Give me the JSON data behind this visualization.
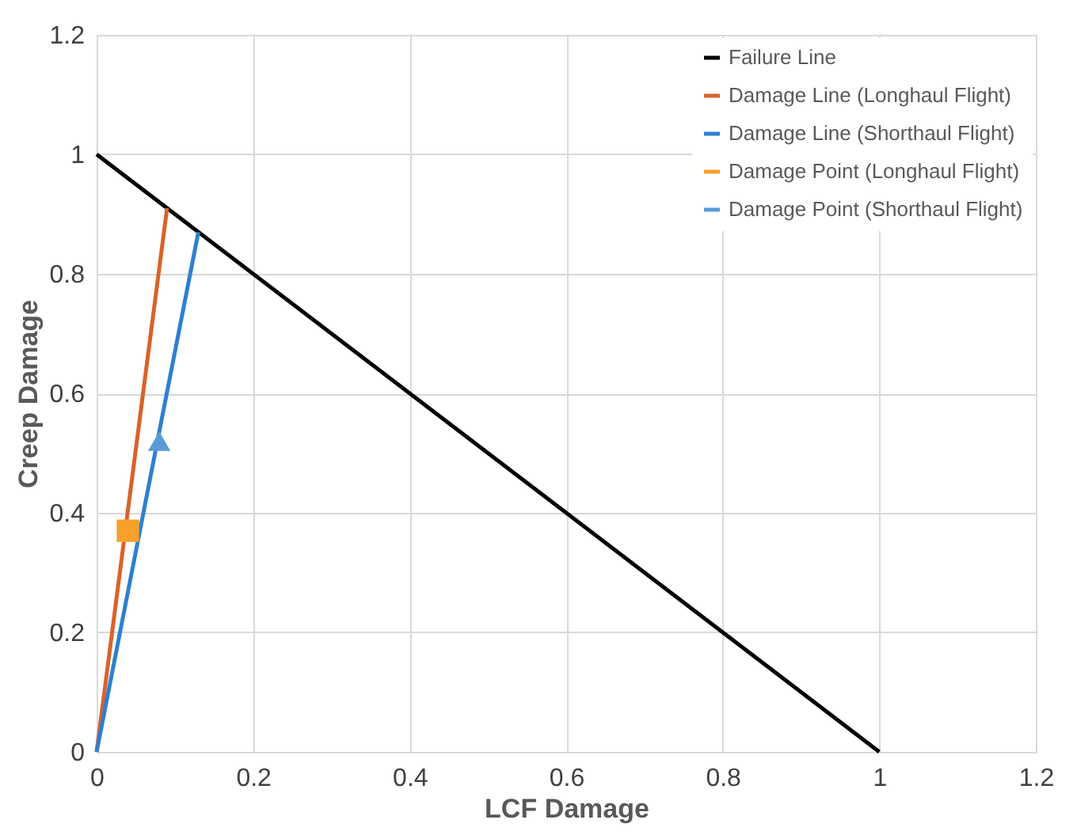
{
  "chart_data": {
    "type": "line",
    "xlabel": "LCF Damage",
    "ylabel": "Creep Damage",
    "xlim": [
      0,
      1.2
    ],
    "xticks": [
      0,
      0.2,
      0.4,
      0.6,
      0.8,
      1,
      1.2
    ],
    "ylim": [
      0,
      1.2
    ],
    "yticks": [
      0,
      0.2,
      0.4,
      0.6,
      0.8,
      1,
      1.2
    ],
    "grid": true,
    "legend": "top right",
    "series": [
      {
        "name": "Failure Line",
        "color": "#000000",
        "x": [
          0,
          1
        ],
        "values": [
          1,
          0
        ]
      },
      {
        "name": "Damage Line (Longhaul Flight)",
        "color": "#d9622b",
        "x": [
          0,
          0.09
        ],
        "values": [
          0,
          0.91
        ]
      },
      {
        "name": "Damage Line (Shorthaul Flight)",
        "color": "#2f7fd0",
        "x": [
          0,
          0.13
        ],
        "values": [
          0,
          0.87
        ]
      },
      {
        "name": "Damage Point (Longhaul Flight)",
        "type": "scatter",
        "marker": "square",
        "color": "#f7a02a",
        "x": [
          0.04
        ],
        "values": [
          0.37
        ]
      },
      {
        "name": "Damage Point (Shorthaul Flight)",
        "type": "scatter",
        "marker": "triangle",
        "color": "#5b9bd5",
        "x": [
          0.08
        ],
        "values": [
          0.52
        ]
      }
    ]
  }
}
